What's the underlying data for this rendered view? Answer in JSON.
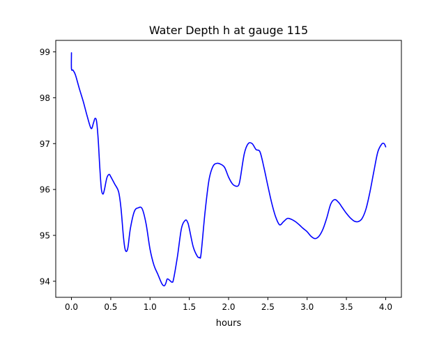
{
  "chart_data": {
    "type": "line",
    "title": "Water Depth h at gauge 115",
    "xlabel": "hours",
    "ylabel": "",
    "xlim": [
      -0.2,
      4.2
    ],
    "ylim": [
      93.65,
      99.25
    ],
    "xticks": [
      0.0,
      0.5,
      1.0,
      1.5,
      2.0,
      2.5,
      3.0,
      3.5,
      4.0
    ],
    "xtick_labels": [
      "0.0",
      "0.5",
      "1.0",
      "1.5",
      "2.0",
      "2.5",
      "3.0",
      "3.5",
      "4.0"
    ],
    "yticks": [
      94,
      95,
      96,
      97,
      98,
      99
    ],
    "ytick_labels": [
      "94",
      "95",
      "96",
      "97",
      "98",
      "99"
    ],
    "grid": false,
    "line_color": "#0000ff",
    "series": [
      {
        "x": [
          0.0,
          0.0,
          0.02,
          0.05,
          0.1,
          0.15,
          0.2,
          0.25,
          0.28,
          0.3,
          0.32,
          0.34,
          0.36,
          0.38,
          0.4,
          0.42,
          0.45,
          0.48,
          0.5,
          0.55,
          0.6,
          0.63,
          0.66,
          0.68,
          0.7,
          0.72,
          0.75,
          0.8,
          0.85,
          0.9,
          0.95,
          1.0,
          1.05,
          1.1,
          1.15,
          1.18,
          1.2,
          1.22,
          1.25,
          1.28,
          1.3,
          1.35,
          1.4,
          1.45,
          1.48,
          1.5,
          1.55,
          1.6,
          1.63,
          1.65,
          1.7,
          1.75,
          1.8,
          1.85,
          1.9,
          1.95,
          2.0,
          2.05,
          2.1,
          2.13,
          2.15,
          2.2,
          2.25,
          2.3,
          2.35,
          2.4,
          2.45,
          2.5,
          2.55,
          2.6,
          2.65,
          2.7,
          2.75,
          2.8,
          2.85,
          2.9,
          2.95,
          3.0,
          3.05,
          3.1,
          3.15,
          3.2,
          3.25,
          3.3,
          3.35,
          3.4,
          3.45,
          3.5,
          3.55,
          3.6,
          3.65,
          3.7,
          3.75,
          3.8,
          3.85,
          3.9,
          3.95,
          3.98,
          4.0
        ],
        "y": [
          98.98,
          98.63,
          98.6,
          98.5,
          98.2,
          97.92,
          97.6,
          97.33,
          97.45,
          97.55,
          97.48,
          97.1,
          96.5,
          96.02,
          95.9,
          96.0,
          96.25,
          96.33,
          96.28,
          96.12,
          95.95,
          95.6,
          95.0,
          94.72,
          94.65,
          94.75,
          95.15,
          95.52,
          95.6,
          95.58,
          95.25,
          94.7,
          94.35,
          94.15,
          93.95,
          93.9,
          93.95,
          94.05,
          94.02,
          93.98,
          94.05,
          94.55,
          95.15,
          95.33,
          95.28,
          95.15,
          94.75,
          94.55,
          94.52,
          94.6,
          95.5,
          96.2,
          96.5,
          96.57,
          96.55,
          96.48,
          96.27,
          96.12,
          96.07,
          96.1,
          96.25,
          96.78,
          97.0,
          97.0,
          96.87,
          96.82,
          96.48,
          96.08,
          95.7,
          95.4,
          95.23,
          95.3,
          95.37,
          95.35,
          95.3,
          95.23,
          95.15,
          95.08,
          94.98,
          94.93,
          94.98,
          95.13,
          95.38,
          95.68,
          95.78,
          95.72,
          95.6,
          95.48,
          95.38,
          95.31,
          95.3,
          95.37,
          95.58,
          95.95,
          96.4,
          96.82,
          96.99,
          97.0,
          96.93
        ]
      }
    ]
  }
}
